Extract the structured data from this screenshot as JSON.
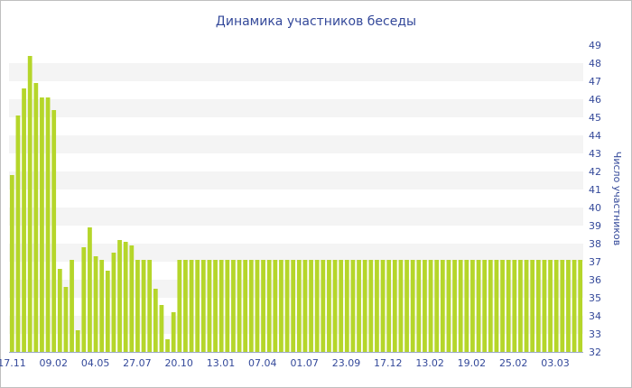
{
  "chart_data": {
    "type": "bar",
    "title": "Динамика участников беседы",
    "ylabel": "Число участников",
    "xlabel": "",
    "ylim": [
      32,
      49
    ],
    "y_ticks": [
      32,
      33,
      34,
      35,
      36,
      37,
      38,
      39,
      40,
      41,
      42,
      43,
      44,
      45,
      46,
      47,
      48,
      49
    ],
    "x_tick_labels": [
      "17.11",
      "09.02",
      "04.05",
      "27.07",
      "20.10",
      "13.01",
      "07.04",
      "01.07",
      "23.09",
      "17.12",
      "13.02",
      "19.02",
      "25.02",
      "03.03"
    ],
    "bar_color": "#b5d62a",
    "band_color": "#f4f4f4",
    "values": [
      41.8,
      45.1,
      46.6,
      48.4,
      46.9,
      46.1,
      46.1,
      45.4,
      36.6,
      35.6,
      37.1,
      33.2,
      37.8,
      38.9,
      37.3,
      37.1,
      36.5,
      37.5,
      38.2,
      38.1,
      37.9,
      37.1,
      37.1,
      37.1,
      35.5,
      34.6,
      32.7,
      34.2,
      37.1,
      37.1,
      37.1,
      37.1,
      37.1,
      37.1,
      37.1,
      37.1,
      37.1,
      37.1,
      37.1,
      37.1,
      37.1,
      37.1,
      37.1,
      37.1,
      37.1,
      37.1,
      37.1,
      37.1,
      37.1,
      37.1,
      37.1,
      37.1,
      37.1,
      37.1,
      37.1,
      37.1,
      37.1,
      37.1,
      37.1,
      37.1,
      37.1,
      37.1,
      37.1,
      37.1,
      37.1,
      37.1,
      37.1,
      37.1,
      37.1,
      37.1,
      37.1,
      37.1,
      37.1,
      37.1,
      37.1,
      37.1,
      37.1,
      37.1,
      37.1,
      37.1,
      37.1,
      37.1,
      37.1,
      37.1,
      37.1,
      37.1,
      37.1,
      37.1,
      37.1,
      37.1,
      37.1,
      37.1,
      37.1,
      37.1,
      37.1,
      37.1
    ]
  }
}
